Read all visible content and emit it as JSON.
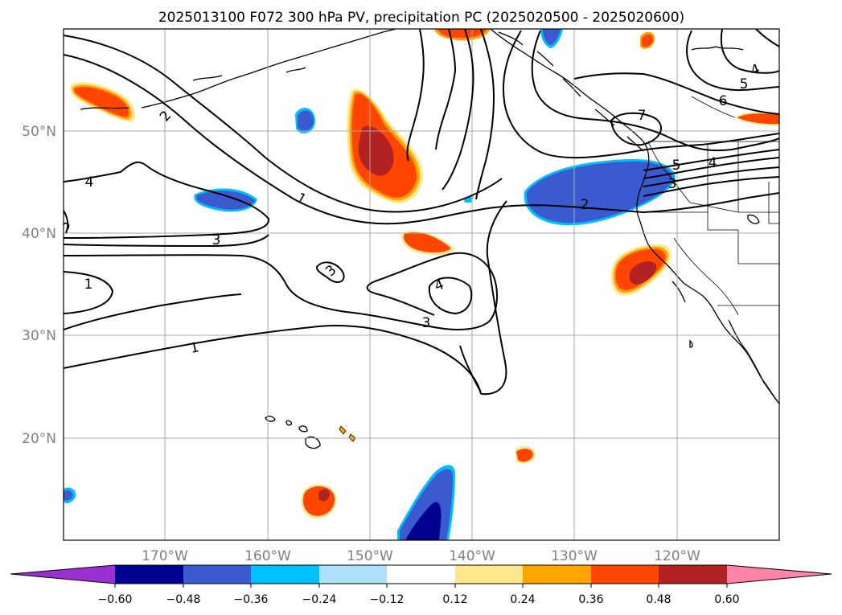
{
  "title": "2025013100 F072 300 hPa PV, precipitation PC (2025020500 - 2025020600)",
  "lat_labels": [
    "50°N",
    "40°N",
    "30°N",
    "20°N"
  ],
  "lon_labels": [
    "170°W",
    "160°W",
    "150°W",
    "140°W",
    "130°W",
    "120°W"
  ],
  "colorbar": {
    "ticks": [
      "−0.60",
      "−0.48",
      "−0.36",
      "−0.24",
      "−0.12",
      "0.12",
      "0.24",
      "0.36",
      "0.48",
      "0.60"
    ],
    "colors": {
      "below": "#9b30d0",
      "c1": "#000090",
      "c2": "#3a5bd0",
      "c3": "#00bfff",
      "c4": "#aee0fa",
      "c5": "#ffffff",
      "c6": "#ffe68c",
      "c7": "#ffa500",
      "c8": "#ff4500",
      "c9": "#b22222",
      "above": "#ff85a8"
    }
  },
  "contour_labels": {
    "k1": "2",
    "k2": "4",
    "k3": "5",
    "k4": "1",
    "k5": "3",
    "k6": "3",
    "k7": "1",
    "k8": "4",
    "k9": "3",
    "k10": "1",
    "k11": "2",
    "k12": "7",
    "k13": "6",
    "k14": "5",
    "k15": "4",
    "k16": "5",
    "k17": "4",
    "k18": "3"
  }
}
